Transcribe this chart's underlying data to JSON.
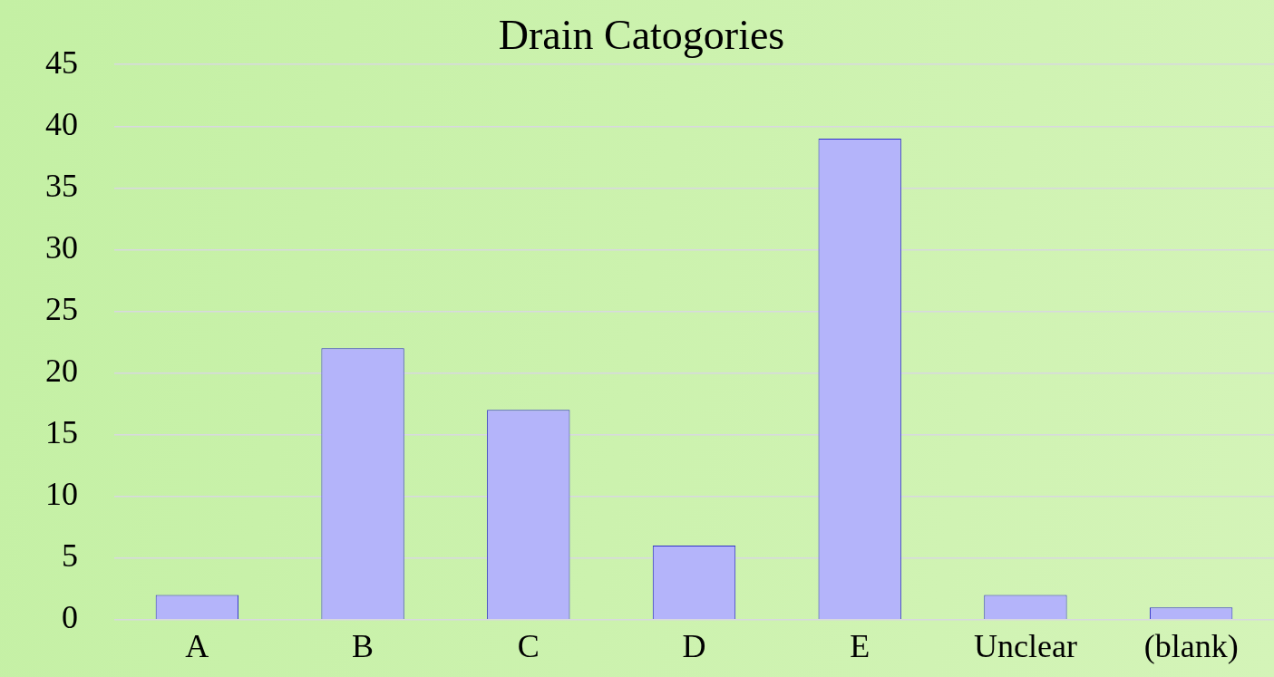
{
  "chart_data": {
    "type": "bar",
    "title": "Drain Catogories",
    "categories": [
      "A",
      "B",
      "C",
      "D",
      "E",
      "Unclear",
      "(blank)"
    ],
    "values": [
      2,
      22,
      17,
      6,
      39,
      2,
      1
    ],
    "color": "#b4b4fa",
    "ylim": [
      0,
      45
    ],
    "yticks": [
      0,
      5,
      10,
      15,
      20,
      25,
      30,
      35,
      40,
      45
    ],
    "grid": "y",
    "legend": false
  }
}
